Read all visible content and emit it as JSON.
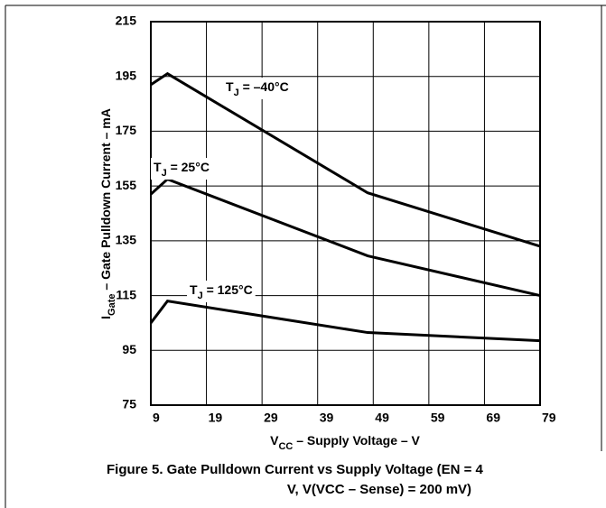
{
  "chart_data": {
    "type": "line",
    "x_label": [
      "V",
      "CC",
      " – Supply Voltage – V"
    ],
    "y_label": [
      "I",
      "Gate",
      " – Gate Pulldown Current – mA"
    ],
    "caption": [
      "Figure 5. Gate Pulldown Current vs Supply Voltage (EN = 4",
      "V, V(VCC – Sense) = 200 mV)"
    ],
    "xlim": [
      9,
      79
    ],
    "xticks": [
      9,
      19,
      29,
      39,
      49,
      59,
      69,
      79
    ],
    "ylim": [
      75,
      215
    ],
    "yticks": [
      75,
      95,
      115,
      135,
      155,
      175,
      195,
      215
    ],
    "grid": true,
    "series": [
      {
        "label": [
          "T",
          "J",
          " = –40°C"
        ],
        "color": "#000000",
        "x": [
          9,
          12,
          48,
          79
        ],
        "values": [
          192,
          196,
          152.5,
          133
        ]
      },
      {
        "label": [
          "T",
          "J",
          " = 25°C"
        ],
        "color": "#000000",
        "x": [
          9,
          12,
          48,
          79
        ],
        "values": [
          152,
          157.5,
          129.5,
          115
        ]
      },
      {
        "label": [
          "T",
          "J",
          " = 125°C"
        ],
        "color": "#000000",
        "x": [
          9,
          12,
          48,
          79
        ],
        "values": [
          105,
          113,
          101.5,
          98.5
        ]
      }
    ]
  }
}
